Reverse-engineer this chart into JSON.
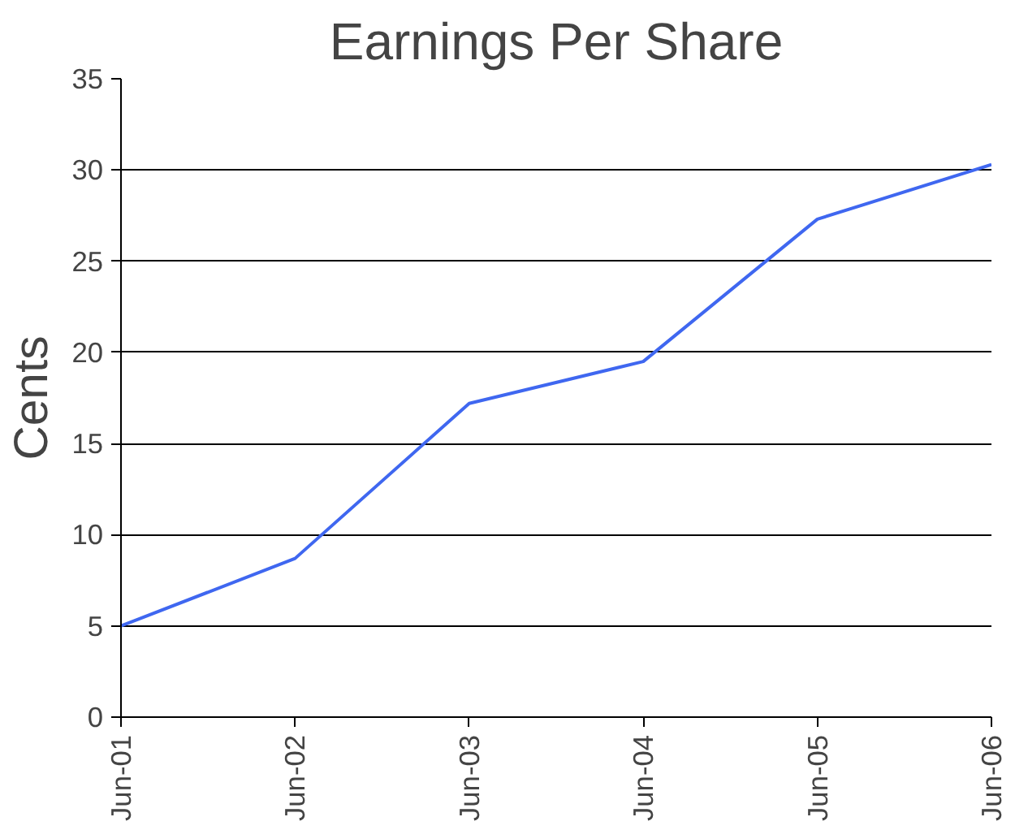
{
  "chart_data": {
    "type": "line",
    "title": "Earnings Per Share",
    "ylabel": "Cents",
    "categories": [
      "Jun-01",
      "Jun-02",
      "Jun-03",
      "Jun-04",
      "Jun-05",
      "Jun-06"
    ],
    "series": [
      {
        "color": "#3f67f0",
        "values": [
          5,
          8.7,
          17.2,
          19.5,
          27.3,
          30.3
        ]
      }
    ],
    "ylim": [
      0,
      35
    ],
    "yticks": [
      0,
      5,
      10,
      15,
      20,
      25,
      30,
      35
    ],
    "grid": "y",
    "marker": "none",
    "line_style": "solid"
  }
}
